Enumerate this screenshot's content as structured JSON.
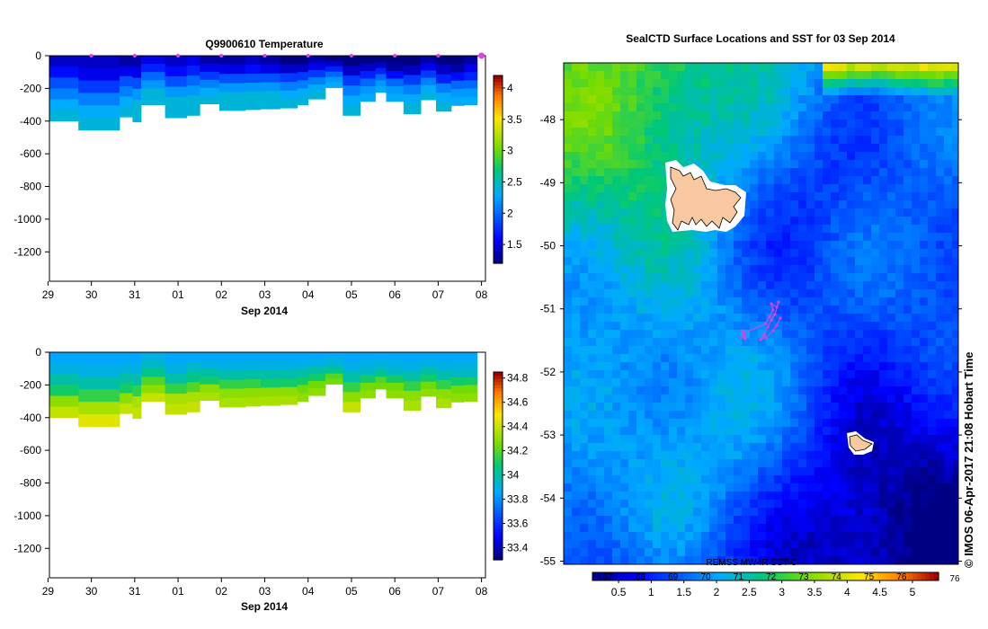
{
  "chart_data": [
    {
      "type": "heatmap",
      "title": "Q9900610  Temperature",
      "quantity": "temperature",
      "x_tick_labels": [
        "29",
        "30",
        "31",
        "01",
        "02",
        "03",
        "04",
        "05",
        "06",
        "07",
        "08"
      ],
      "x_month_label": "Sep 2014",
      "y_ticks": [
        0,
        -200,
        -400,
        -600,
        -800,
        -1000,
        -1200
      ],
      "ylim": [
        -1380,
        0
      ],
      "profile_marker_color": "#e040e0",
      "colorbar": {
        "ticks": [
          "1.5",
          "2",
          "2.5",
          "3",
          "3.5",
          "4"
        ],
        "range": [
          1.2,
          4.2
        ]
      },
      "profiles": [
        {
          "time": 0.0,
          "depth": -400,
          "values": [
            1.4,
            1.6,
            1.9,
            2.1,
            2.3,
            2.4
          ]
        },
        {
          "time": 0.7,
          "depth": -455,
          "values": [
            1.4,
            1.5,
            1.8,
            2.1,
            2.3,
            2.4
          ]
        },
        {
          "time": 1.65,
          "depth": -375,
          "values": [
            1.3,
            1.5,
            1.9,
            2.1,
            2.3,
            2.4
          ]
        },
        {
          "time": 1.95,
          "depth": -405,
          "values": [
            1.3,
            1.5,
            1.9,
            2.2,
            2.4,
            2.4
          ]
        },
        {
          "time": 2.15,
          "depth": -300,
          "values": [
            1.5,
            1.7,
            2.0,
            2.2,
            2.4,
            2.4
          ]
        },
        {
          "time": 2.7,
          "depth": -380,
          "values": [
            1.4,
            1.6,
            1.9,
            2.2,
            2.4,
            2.4
          ]
        },
        {
          "time": 3.2,
          "depth": -365,
          "values": [
            1.5,
            1.7,
            2.0,
            2.2,
            2.4,
            2.4
          ]
        },
        {
          "time": 3.5,
          "depth": -295,
          "values": [
            1.3,
            1.5,
            1.8,
            2.1,
            2.3,
            2.4
          ]
        },
        {
          "time": 3.95,
          "depth": -335,
          "values": [
            1.3,
            1.5,
            1.9,
            2.2,
            2.4,
            2.4
          ]
        },
        {
          "time": 4.55,
          "depth": -330,
          "values": [
            1.4,
            1.6,
            1.9,
            2.2,
            2.4,
            2.4
          ]
        },
        {
          "time": 4.9,
          "depth": -325,
          "values": [
            1.3,
            1.5,
            1.9,
            2.2,
            2.4,
            2.4
          ]
        },
        {
          "time": 5.35,
          "depth": -320,
          "values": [
            1.2,
            1.4,
            1.8,
            2.1,
            2.3,
            2.4
          ]
        },
        {
          "time": 5.75,
          "depth": -300,
          "values": [
            1.2,
            1.4,
            1.8,
            2.1,
            2.3,
            2.4
          ]
        },
        {
          "time": 6.0,
          "depth": -265,
          "values": [
            1.3,
            1.5,
            1.8,
            2.1,
            2.3,
            2.4
          ]
        },
        {
          "time": 6.4,
          "depth": -195,
          "values": [
            1.2,
            1.4,
            1.7,
            2.0,
            2.2,
            2.3
          ]
        },
        {
          "time": 6.8,
          "depth": -365,
          "values": [
            1.2,
            1.4,
            1.8,
            2.1,
            2.3,
            2.4
          ]
        },
        {
          "time": 7.2,
          "depth": -280,
          "values": [
            1.2,
            1.4,
            1.7,
            2.0,
            2.2,
            2.3
          ]
        },
        {
          "time": 7.55,
          "depth": -225,
          "values": [
            1.2,
            1.4,
            1.7,
            2.0,
            2.2,
            2.3
          ]
        },
        {
          "time": 7.8,
          "depth": -280,
          "values": [
            1.1,
            1.3,
            1.6,
            2.0,
            2.2,
            2.3
          ]
        },
        {
          "time": 8.2,
          "depth": -355,
          "values": [
            1.2,
            1.4,
            1.8,
            2.1,
            2.3,
            2.4
          ]
        },
        {
          "time": 8.6,
          "depth": -270,
          "values": [
            1.3,
            1.5,
            1.8,
            2.1,
            2.3,
            2.4
          ]
        },
        {
          "time": 8.95,
          "depth": -340,
          "values": [
            1.2,
            1.4,
            1.7,
            2.1,
            2.3,
            2.4
          ]
        },
        {
          "time": 9.3,
          "depth": -305,
          "values": [
            1.1,
            1.3,
            1.6,
            2.0,
            2.2,
            2.3
          ]
        },
        {
          "time": 9.6,
          "depth": -300,
          "values": [
            1.3,
            1.5,
            1.7,
            2.0,
            2.2,
            2.3
          ]
        }
      ]
    },
    {
      "type": "heatmap",
      "title": "",
      "quantity": "salinity",
      "x_tick_labels": [
        "29",
        "30",
        "31",
        "01",
        "02",
        "03",
        "04",
        "05",
        "06",
        "07",
        "08"
      ],
      "x_month_label": "Sep 2014",
      "y_ticks": [
        0,
        -200,
        -400,
        -600,
        -800,
        -1000,
        -1200
      ],
      "ylim": [
        -1380,
        0
      ],
      "colorbar": {
        "ticks": [
          "33.4",
          "33.6",
          "33.8",
          "34",
          "34.2",
          "34.4",
          "34.6",
          "34.8"
        ],
        "range": [
          33.3,
          34.85
        ]
      },
      "profiles": [
        {
          "time": 0.0,
          "depth": -400,
          "values": [
            33.85,
            33.9,
            34.0,
            34.1,
            34.3,
            34.4
          ]
        },
        {
          "time": 0.7,
          "depth": -455,
          "values": [
            33.85,
            33.9,
            34.0,
            34.15,
            34.35,
            34.45
          ]
        },
        {
          "time": 1.65,
          "depth": -375,
          "values": [
            33.85,
            33.9,
            34.0,
            34.1,
            34.3,
            34.4
          ]
        },
        {
          "time": 1.95,
          "depth": -405,
          "values": [
            33.85,
            33.9,
            34.0,
            34.15,
            34.35,
            34.4
          ]
        },
        {
          "time": 2.15,
          "depth": -300,
          "values": [
            33.9,
            33.95,
            34.05,
            34.2,
            34.3,
            34.4
          ]
        },
        {
          "time": 2.7,
          "depth": -380,
          "values": [
            33.85,
            33.9,
            34.0,
            34.15,
            34.35,
            34.4
          ]
        },
        {
          "time": 3.2,
          "depth": -365,
          "values": [
            33.85,
            33.95,
            34.05,
            34.2,
            34.35,
            34.4
          ]
        },
        {
          "time": 3.5,
          "depth": -295,
          "values": [
            33.85,
            33.9,
            34.0,
            34.1,
            34.3,
            34.35
          ]
        },
        {
          "time": 3.95,
          "depth": -335,
          "values": [
            33.85,
            33.9,
            34.0,
            34.15,
            34.3,
            34.35
          ]
        },
        {
          "time": 4.55,
          "depth": -330,
          "values": [
            33.85,
            33.9,
            34.0,
            34.15,
            34.3,
            34.35
          ]
        },
        {
          "time": 4.9,
          "depth": -325,
          "values": [
            33.85,
            33.9,
            34.0,
            34.1,
            34.3,
            34.35
          ]
        },
        {
          "time": 5.35,
          "depth": -320,
          "values": [
            33.85,
            33.9,
            34.0,
            34.1,
            34.3,
            34.35
          ]
        },
        {
          "time": 5.75,
          "depth": -300,
          "values": [
            33.85,
            33.9,
            34.0,
            34.1,
            34.25,
            34.3
          ]
        },
        {
          "time": 6.0,
          "depth": -265,
          "values": [
            33.85,
            33.9,
            34.0,
            34.1,
            34.25,
            34.3
          ]
        },
        {
          "time": 6.4,
          "depth": -195,
          "values": [
            33.85,
            33.9,
            33.95,
            34.05,
            34.2,
            34.25
          ]
        },
        {
          "time": 6.8,
          "depth": -365,
          "values": [
            33.85,
            33.9,
            34.0,
            34.15,
            34.3,
            34.4
          ]
        },
        {
          "time": 7.2,
          "depth": -280,
          "values": [
            33.85,
            33.9,
            33.95,
            34.1,
            34.25,
            34.3
          ]
        },
        {
          "time": 7.55,
          "depth": -225,
          "values": [
            33.85,
            33.9,
            33.95,
            34.05,
            34.2,
            34.25
          ]
        },
        {
          "time": 7.8,
          "depth": -280,
          "values": [
            33.85,
            33.9,
            33.95,
            34.1,
            34.25,
            34.3
          ]
        },
        {
          "time": 8.2,
          "depth": -355,
          "values": [
            33.85,
            33.9,
            34.0,
            34.15,
            34.3,
            34.35
          ]
        },
        {
          "time": 8.6,
          "depth": -270,
          "values": [
            33.85,
            33.9,
            34.0,
            34.1,
            34.25,
            34.3
          ]
        },
        {
          "time": 8.95,
          "depth": -340,
          "values": [
            33.85,
            33.9,
            34.0,
            34.15,
            34.3,
            34.35
          ]
        },
        {
          "time": 9.3,
          "depth": -305,
          "values": [
            33.85,
            33.9,
            33.95,
            34.1,
            34.25,
            34.3
          ]
        },
        {
          "time": 9.6,
          "depth": -300,
          "values": [
            33.85,
            33.9,
            33.95,
            34.1,
            34.25,
            34.3
          ]
        }
      ]
    },
    {
      "type": "heatmap",
      "title": "SealCTD Surface Locations and SST for 03 Sep 2014",
      "y_tick_labels": [
        "-48",
        "-49",
        "-50",
        "-51",
        "-52",
        "-53",
        "-54",
        "-55"
      ],
      "y_ticks": [
        -48,
        -49,
        -50,
        -51,
        -52,
        -53,
        -54,
        -55
      ],
      "ylim": [
        -55.05,
        -47.1
      ],
      "colorbar": {
        "ticks": [
          "0.5",
          "1",
          "1.5",
          "2",
          "2.5",
          "3",
          "3.5",
          "4",
          "4.5",
          "5"
        ],
        "top_labels": [
          "67",
          "68",
          "69",
          "70",
          "71",
          "72",
          "73",
          "74",
          "75",
          "76"
        ],
        "range": [
          0.1,
          5.4
        ]
      },
      "source_label": "REMSS MW-IR SST C",
      "land_color": "#f8c8a0",
      "track_color": "#e040e0",
      "credit": "© IMOS 06-Apr-2017 21:08 Hobart Time"
    }
  ]
}
